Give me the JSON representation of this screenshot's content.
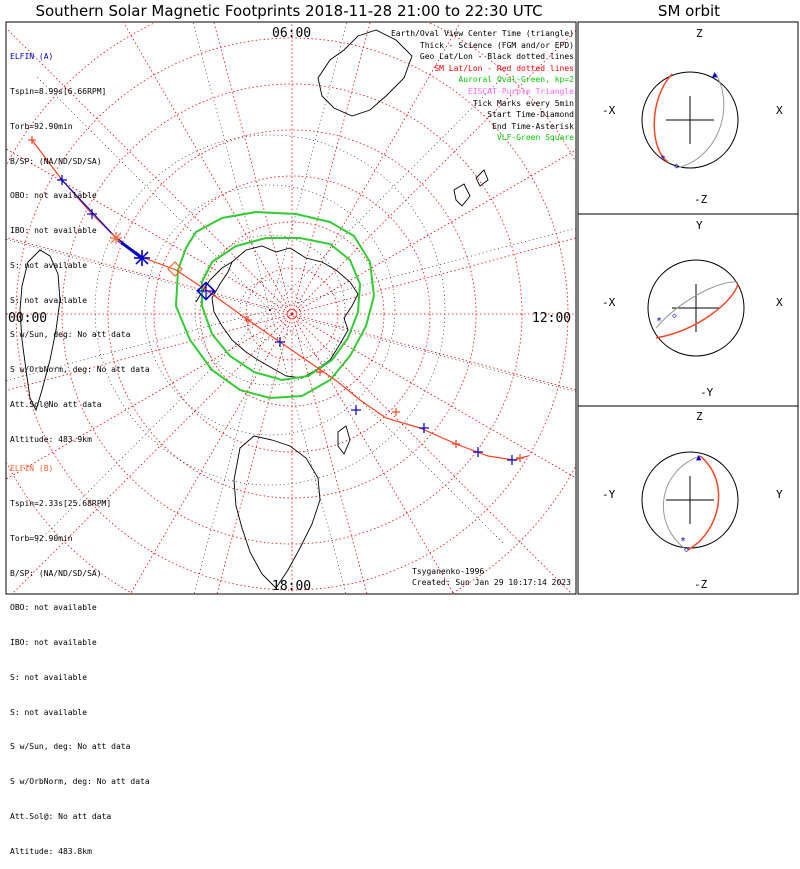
{
  "title": "Southern Solar Magnetic Footprints 2018-11-28 21:00 to 22:30 UTC",
  "right_title": "SM orbit",
  "elfin_a": {
    "header": "ELFIN (A)",
    "color": "#0000cc",
    "lines": [
      "Tspin=8.99s[6.66RPM]",
      "Torb=92.90min",
      "B/SP: (NA/ND/SD/SA)",
      "OBO: not available",
      "IBO: not available",
      "S: not available",
      "S: not available",
      "S w/Sun, deg: No att data",
      "S w/OrbNorm, deg: No att data",
      "Att.Sol@No att data",
      "Altitude: 483.9km"
    ]
  },
  "elfin_b": {
    "header": "ELFIN (B)",
    "color": "#ff6633",
    "lines": [
      "Tspin=2.33s[25.68RPM]",
      "Torb=92.90min",
      "B/SP: (NA/ND/SD/SA)",
      "OBO: not available",
      "IBO: not available",
      "S: not available",
      "S: not available",
      "S w/Sun, deg: No att data",
      "S w/OrbNorm, deg: No att data",
      "Att.Sol@: No att data",
      "Altitude: 483.8km"
    ]
  },
  "legend": [
    {
      "text": "Earth/Oval View Center Time (triangle)",
      "color": "#000000"
    },
    {
      "text": "Thick - Science (FGM and/or EPD)",
      "color": "#000000"
    },
    {
      "text": "Geo Lat/Lon - Black dotted lines",
      "color": "#000000"
    },
    {
      "text": "SM Lat/Lon - Red dotted lines",
      "color": "#ff0000"
    },
    {
      "text": "Auroral Oval-Green, kp=2",
      "color": "#00cc00"
    },
    {
      "text": "EISCAT-Purple Triangle",
      "color": "#ff66ff"
    },
    {
      "text": "Tick Marks every 5min",
      "color": "#000000"
    },
    {
      "text": "Start Time-Diamond",
      "color": "#000000"
    },
    {
      "text": "End Time-Asterisk",
      "color": "#000000"
    },
    {
      "text": "VLF-Green Square",
      "color": "#00cc00"
    }
  ],
  "footer": {
    "model": "Tsyganenko-1996",
    "created": "Created: Sun Jan 29 10:17:14 2023"
  },
  "map_labels": {
    "left": "00:00",
    "right": "12:00",
    "bottom": "18:00",
    "top": "06:00"
  },
  "orbit_panels": [
    {
      "top": "Z",
      "bottom": "-Z",
      "left": "-X",
      "right": "X"
    },
    {
      "top": "Y",
      "bottom": "-Y",
      "left": "-X",
      "right": "X"
    },
    {
      "top": "Z",
      "bottom": "-Z",
      "left": "-Y",
      "right": "Y"
    }
  ],
  "colors": {
    "elfin_a": "#0000cc",
    "elfin_b": "#ff6633",
    "sm_grid": "#ff0000",
    "oval": "#00cc00"
  }
}
